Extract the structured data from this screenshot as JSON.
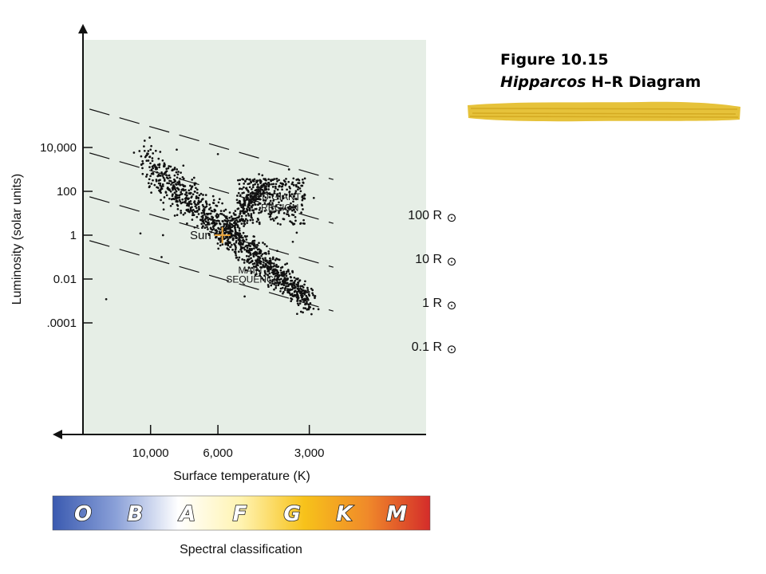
{
  "caption": {
    "figure_label": "Figure 10.15",
    "subtitle_italic": "Hipparcos",
    "subtitle_rest": " H–R Diagram"
  },
  "colors": {
    "plot_background": "#e6eee6",
    "dots": "#111111",
    "sun_marker": "#e8a33a",
    "caption_brush": "#e6c23a"
  },
  "chart_data": {
    "type": "scatter",
    "title": "",
    "xlabel": "Surface temperature (K)",
    "ylabel": "Luminosity (solar units)",
    "x_scale": "log",
    "x_reversed": true,
    "y_scale": "log",
    "xlim": [
      20000,
      2500
    ],
    "ylim": [
      4e-05,
      100000
    ],
    "x_ticks": [
      {
        "value": 10000,
        "label": "10,000"
      },
      {
        "value": 6000,
        "label": "6,000"
      },
      {
        "value": 3000,
        "label": "3,000"
      }
    ],
    "y_ticks": [
      {
        "value": 10000,
        "label": "10,000"
      },
      {
        "value": 100,
        "label": "100"
      },
      {
        "value": 1,
        "label": "1"
      },
      {
        "value": 0.01,
        "label": "0.01"
      },
      {
        "value": 0.0001,
        "label": ".0001"
      }
    ],
    "radius_lines": [
      {
        "radius": 100,
        "label": "100 R",
        "symbol": "⊙"
      },
      {
        "radius": 10,
        "label": "10  R",
        "symbol": "⊙"
      },
      {
        "radius": 1,
        "label": "1 R",
        "symbol": "⊙"
      },
      {
        "radius": 0.1,
        "label": "0.1 R",
        "symbol": "⊙"
      }
    ],
    "annotations": [
      {
        "text": "RED GIANT",
        "T": 3900,
        "L": 40
      },
      {
        "text": "REGION",
        "T": 3750,
        "L": 13
      },
      {
        "text": "MAIN",
        "T": 4700,
        "L": 0.018
      },
      {
        "text": "SEQUENCE",
        "T": 4600,
        "L": 0.007
      }
    ],
    "sun": {
      "label": "Sun",
      "T": 5800,
      "L": 1
    },
    "regions": {
      "main_sequence": {
        "T_range": [
          10500,
          3000
        ],
        "L_range": [
          2000,
          0.001
        ],
        "count": 1150
      },
      "red_giants": {
        "T_range": [
          5200,
          3100
        ],
        "L_range": [
          3,
          400
        ],
        "count": 330
      },
      "giant_branch_stars": {
        "T_range": [
          5600,
          4200
        ],
        "L_range": [
          1,
          200
        ],
        "count": 180
      },
      "scattered_stars": [
        {
          "T": 10000,
          "L": 8000
        },
        {
          "T": 10300,
          "L": 2500
        },
        {
          "T": 8200,
          "L": 8000
        },
        {
          "T": 7800,
          "L": 1500
        },
        {
          "T": 6000,
          "L": 5000
        },
        {
          "T": 3500,
          "L": 1000
        },
        {
          "T": 2900,
          "L": 50
        },
        {
          "T": 10800,
          "L": 1.2
        },
        {
          "T": 9100,
          "L": 1
        },
        {
          "T": 9200,
          "L": 0.1
        },
        {
          "T": 14000,
          "L": 0.0012
        },
        {
          "T": 4900,
          "L": 0.0016
        },
        {
          "T": 2950,
          "L": 0.00025
        },
        {
          "T": 3300,
          "L": 1.3
        },
        {
          "T": 3400,
          "L": 0.5
        },
        {
          "T": 3150,
          "L": 0.0003
        }
      ]
    }
  },
  "spectral_bar": {
    "letters": [
      "O",
      "B",
      "A",
      "F",
      "G",
      "K",
      "M"
    ],
    "label": "Spectral classification",
    "gradient_colors": [
      "#3a5ab0",
      "#8aa0d8",
      "#ffffff",
      "#fff3b0",
      "#f7c21a",
      "#f08a2a",
      "#d42c2a"
    ]
  }
}
